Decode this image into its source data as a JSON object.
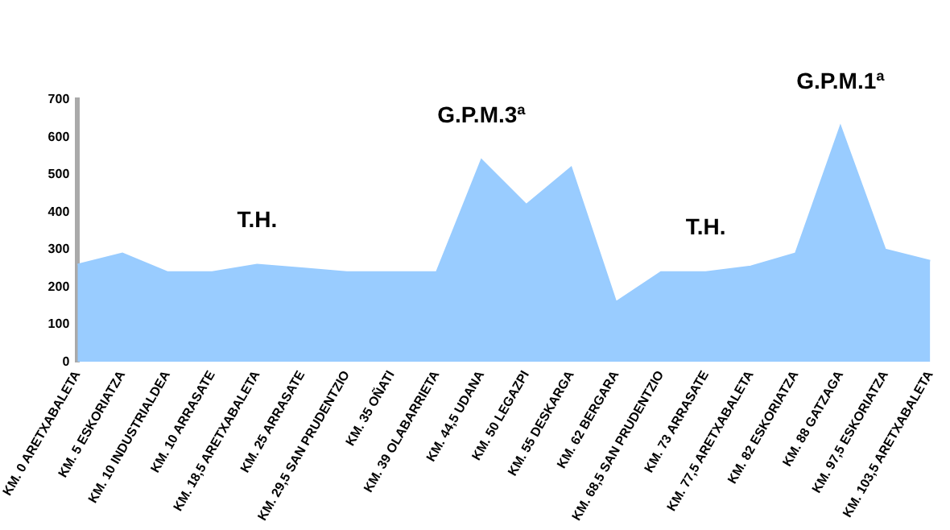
{
  "chart_data": {
    "type": "area",
    "categories": [
      "KM. 0 ARETXABALETA",
      "KM. 5 ESKORIATZA",
      "KM. 10 INDUSTRIALDEA",
      "KM. 10 ARRASATE",
      "KM. 18,5 ARETXABALETA",
      "KM. 25 ARRASATE",
      "KM. 29,5 SAN PRUDENTZIO",
      "KM. 35 OÑATI",
      "KM. 39 OLABARRIETA",
      "KM. 44,5 UDANA",
      "KM. 50 LEGAZPI",
      "KM. 55 DESKARGA",
      "KM. 62 BERGARA",
      "KM. 68,5 SAN PRUDENTZIO",
      "KM. 73 ARRASATE",
      "KM. 77,5 ARETXABALETA",
      "KM. 82 ESKORIATZA",
      "KM. 88 GATZAGA",
      "KM. 97,5 ESKORIATZA",
      "KM. 103,5 ARETXABALETA"
    ],
    "series": [
      {
        "color": "#99ccff",
        "values": [
          260,
          290,
          240,
          240,
          260,
          250,
          240,
          240,
          240,
          540,
          420,
          520,
          160,
          240,
          240,
          255,
          290,
          630,
          300,
          270
        ]
      }
    ],
    "ylim": [
      0,
      700
    ],
    "yticks": [
      0,
      100,
      200,
      300,
      400,
      500,
      600,
      700
    ],
    "grid": false,
    "legend": false,
    "annotations": [
      {
        "text": "T.H.",
        "x": "KM. 18,5 ARETXABALETA",
        "y": 260
      },
      {
        "text": "G.P.M.3ª",
        "x": "KM. 44,5 UDANA",
        "y": 540
      },
      {
        "text": "T.H.",
        "x": "KM. 73 ARRASATE",
        "y": 240
      },
      {
        "text": "G.P.M.1ª",
        "x": "KM. 88 GATZAGA",
        "y": 630
      }
    ]
  }
}
